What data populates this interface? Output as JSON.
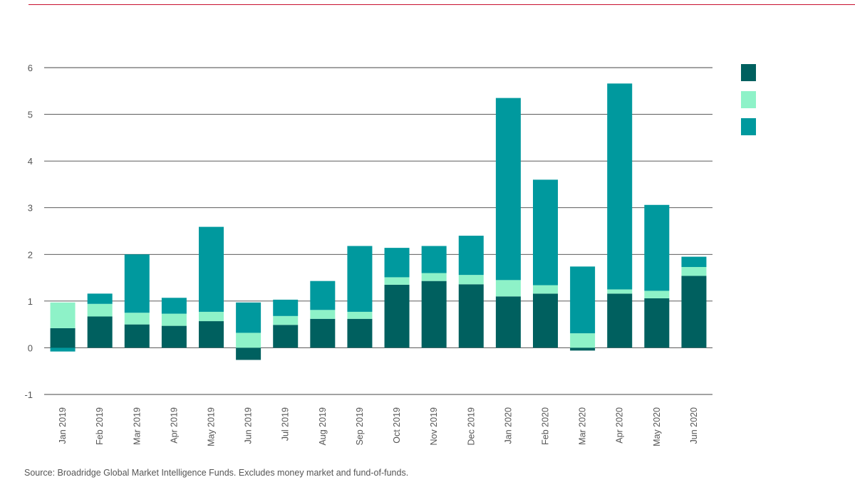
{
  "chart_data": {
    "type": "bar",
    "stacked": true,
    "categories": [
      "Jan 2019",
      "Feb 2019",
      "Mar 2019",
      "Apr 2019",
      "May 2019",
      "Jun 2019",
      "Jul 2019",
      "Aug 2019",
      "Sep 2019",
      "Oct 2019",
      "Nov 2019",
      "Dec 2019",
      "Jan 2020",
      "Feb 2020",
      "Mar 2020",
      "Apr 2020",
      "May 2020",
      "Jun 2020"
    ],
    "series": [
      {
        "color": "#00605f",
        "values": [
          0.42,
          0.67,
          0.5,
          0.47,
          0.57,
          -0.26,
          0.49,
          0.62,
          0.62,
          1.35,
          1.43,
          1.36,
          1.1,
          1.16,
          -0.06,
          1.16,
          1.06,
          1.54
        ]
      },
      {
        "color": "#8ef2c8",
        "values": [
          0.55,
          0.27,
          0.25,
          0.26,
          0.2,
          0.32,
          0.19,
          0.19,
          0.15,
          0.16,
          0.17,
          0.2,
          0.35,
          0.18,
          0.31,
          0.09,
          0.16,
          0.19
        ]
      },
      {
        "color": "#00999e",
        "values": [
          -0.08,
          0.22,
          1.25,
          0.34,
          1.82,
          0.65,
          0.35,
          0.62,
          1.41,
          0.63,
          0.58,
          0.84,
          3.9,
          2.26,
          1.43,
          4.41,
          1.84,
          0.22
        ]
      }
    ],
    "ylim": [
      -1,
      6
    ],
    "yticks": [
      -1,
      0,
      1,
      2,
      3,
      4,
      5,
      6
    ],
    "grid": true,
    "legend_position": "top-right",
    "title": "",
    "xlabel": "",
    "ylabel": ""
  },
  "source_note": "Source: Broadridge Global Market Intelligence Funds. Excludes money market and fund-of-funds.",
  "colors": {
    "accent_rule": "#c8102e",
    "grid": "#444444"
  }
}
